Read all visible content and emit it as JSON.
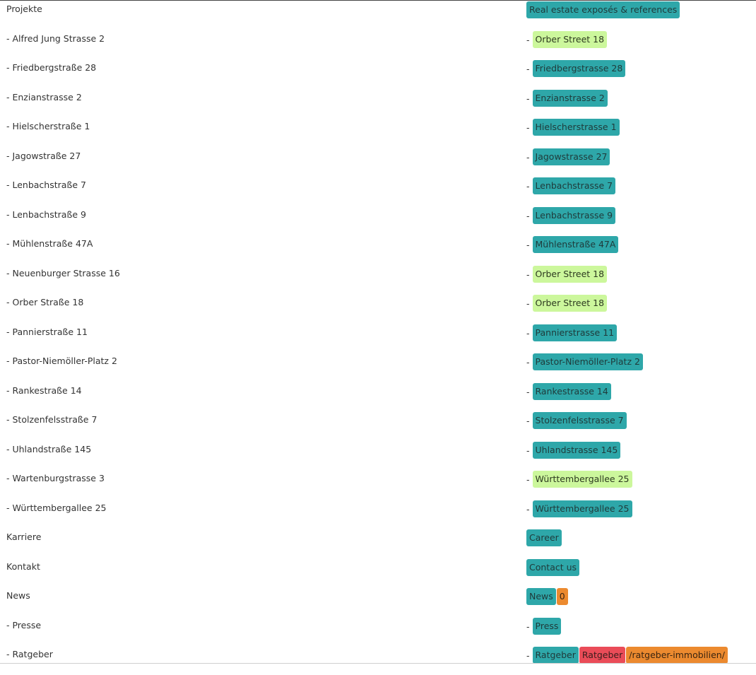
{
  "colors": {
    "teal": "#2ea7a9",
    "lime": "#ccf79c",
    "red": "#ea4c58",
    "orange": "#ec8a2f"
  },
  "rows": [
    {
      "source": "Projekte",
      "dash": false,
      "tags": [
        {
          "text": "Real estate exposés & references",
          "color": "teal"
        }
      ]
    },
    {
      "source": "- Alfred Jung Strasse 2",
      "dash": true,
      "tags": [
        {
          "text": "Orber Street 18",
          "color": "lime"
        }
      ]
    },
    {
      "source": "- Friedbergstraße 28",
      "dash": true,
      "tags": [
        {
          "text": "Friedbergstrasse 28",
          "color": "teal"
        }
      ]
    },
    {
      "source": "- Enzianstrasse 2",
      "dash": true,
      "tags": [
        {
          "text": "Enzianstrasse 2",
          "color": "teal"
        }
      ]
    },
    {
      "source": "- Hielscherstraße 1",
      "dash": true,
      "tags": [
        {
          "text": "Hielscherstrasse 1",
          "color": "teal"
        }
      ]
    },
    {
      "source": "- Jagowstraße 27",
      "dash": true,
      "tags": [
        {
          "text": "Jagowstrasse 27",
          "color": "teal"
        }
      ]
    },
    {
      "source": "- Lenbachstraße 7",
      "dash": true,
      "tags": [
        {
          "text": "Lenbachstrasse 7",
          "color": "teal"
        }
      ]
    },
    {
      "source": "- Lenbachstraße 9",
      "dash": true,
      "tags": [
        {
          "text": "Lenbachstrasse 9",
          "color": "teal"
        }
      ]
    },
    {
      "source": "- Mühlenstraße 47A",
      "dash": true,
      "tags": [
        {
          "text": "Mühlenstraße 47A",
          "color": "teal"
        }
      ]
    },
    {
      "source": "- Neuenburger Strasse 16",
      "dash": true,
      "tags": [
        {
          "text": "Orber Street 18",
          "color": "lime"
        }
      ]
    },
    {
      "source": "- Orber Straße 18",
      "dash": true,
      "tags": [
        {
          "text": "Orber Street 18",
          "color": "lime"
        }
      ]
    },
    {
      "source": "- Pannierstraße 11",
      "dash": true,
      "tags": [
        {
          "text": "Pannierstrasse 11",
          "color": "teal"
        }
      ]
    },
    {
      "source": "- Pastor-Niemöller-Platz 2",
      "dash": true,
      "tags": [
        {
          "text": "Pastor-Niemöller-Platz 2",
          "color": "teal"
        }
      ]
    },
    {
      "source": "- Rankestraße 14",
      "dash": true,
      "tags": [
        {
          "text": "Rankestrasse 14",
          "color": "teal"
        }
      ]
    },
    {
      "source": "- Stolzenfelsstraße 7",
      "dash": true,
      "tags": [
        {
          "text": "Stolzenfelsstrasse 7",
          "color": "teal"
        }
      ]
    },
    {
      "source": "- Uhlandstraße 145",
      "dash": true,
      "tags": [
        {
          "text": "Uhlandstrasse 145",
          "color": "teal"
        }
      ]
    },
    {
      "source": "- Wartenburgstrasse 3",
      "dash": true,
      "tags": [
        {
          "text": "Württembergallee 25",
          "color": "lime"
        }
      ]
    },
    {
      "source": "- Württembergallee 25",
      "dash": true,
      "tags": [
        {
          "text": "Württembergallee 25",
          "color": "teal"
        }
      ]
    },
    {
      "source": "Karriere",
      "dash": false,
      "tags": [
        {
          "text": "Career",
          "color": "teal"
        }
      ]
    },
    {
      "source": "Kontakt",
      "dash": false,
      "tags": [
        {
          "text": "Contact us",
          "color": "teal"
        }
      ]
    },
    {
      "source": "News",
      "dash": false,
      "tags": [
        {
          "text": "News",
          "color": "teal"
        },
        {
          "text": "0",
          "color": "orange"
        }
      ]
    },
    {
      "source": "- Presse",
      "dash": true,
      "tags": [
        {
          "text": "Press",
          "color": "teal"
        }
      ]
    },
    {
      "source": "- Ratgeber",
      "dash": true,
      "tags": [
        {
          "text": "Ratgeber",
          "color": "teal"
        },
        {
          "text": "Ratgeber",
          "color": "red"
        },
        {
          "text": "/ratgeber-immobilien/",
          "color": "orange"
        }
      ]
    }
  ],
  "dash_glyph": "-"
}
